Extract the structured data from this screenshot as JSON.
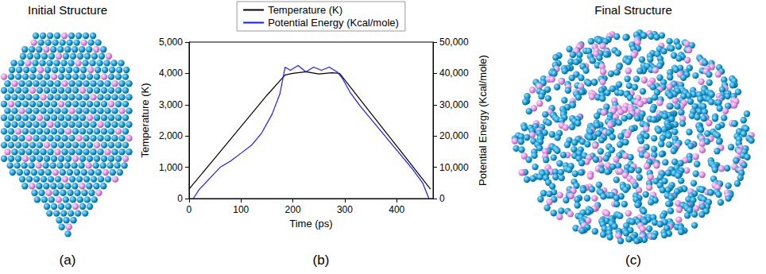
{
  "panels": [
    {
      "title": "Initial Structure",
      "label": "(a)"
    },
    {
      "label": "(b)"
    },
    {
      "title": "Final Structure",
      "label": "(c)"
    }
  ],
  "chart_data": {
    "type": "line",
    "x_label": "Time (ps)",
    "y_label": "Temperature (K)",
    "y2_label": "Potential Energy (Kcal/mole)",
    "xlim": [
      0,
      470
    ],
    "xticks": [
      0,
      100,
      200,
      300,
      400
    ],
    "ylim": [
      0,
      5000
    ],
    "yticks": [
      0,
      1000,
      2000,
      3000,
      4000,
      5000
    ],
    "y2lim": [
      0,
      50000
    ],
    "y2ticks": [
      0,
      10000,
      20000,
      30000,
      40000,
      50000
    ],
    "grid": false,
    "legend": "top",
    "series": [
      {
        "name": "Temperature (K)",
        "color": "#000000",
        "axis": "y",
        "x": [
          0,
          50,
          100,
          150,
          185,
          200,
          225,
          250,
          275,
          290,
          350,
          400,
          465
        ],
        "values": [
          300,
          1300,
          2300,
          3300,
          3950,
          4000,
          4050,
          3980,
          4020,
          4000,
          2730,
          1680,
          300
        ]
      },
      {
        "name": "Potential Energy (Kcal/mole)",
        "color": "#1a1aff",
        "axis": "y2",
        "x": [
          8,
          20,
          40,
          60,
          80,
          100,
          120,
          140,
          160,
          175,
          185,
          195,
          210,
          225,
          240,
          255,
          270,
          285,
          295,
          310,
          330,
          350,
          370,
          390,
          410,
          430,
          450,
          462
        ],
        "values": [
          0,
          3000,
          6500,
          10000,
          12000,
          14500,
          17000,
          21000,
          27000,
          33500,
          42000,
          41000,
          42500,
          40500,
          42000,
          41000,
          42000,
          40500,
          38500,
          34000,
          29500,
          25500,
          21500,
          17500,
          13500,
          9500,
          5000,
          0
        ]
      }
    ]
  }
}
